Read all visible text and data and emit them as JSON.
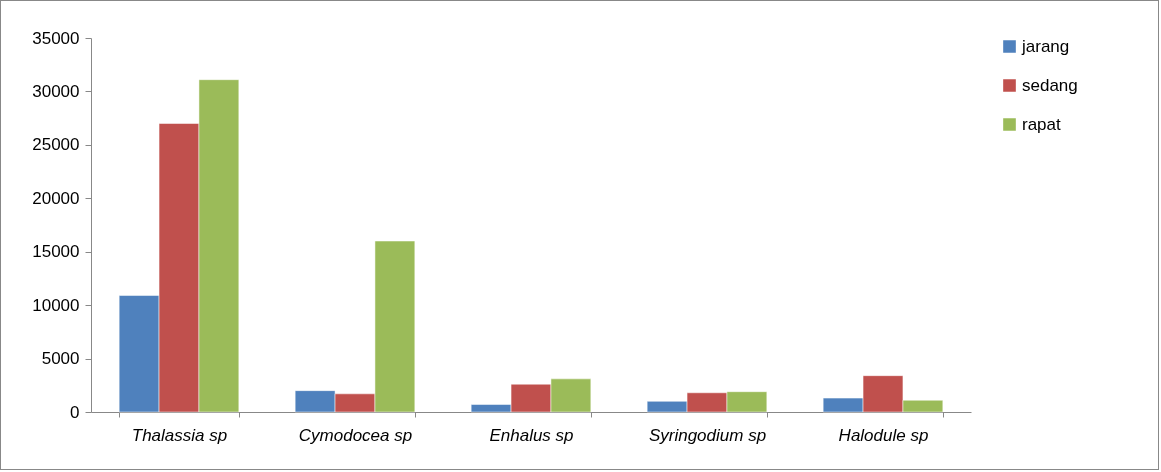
{
  "chart_data": {
    "type": "bar",
    "categories": [
      "Thalassia sp",
      "Cymodocea sp",
      "Enhalus sp",
      "Syringodium sp",
      "Halodule sp"
    ],
    "series": [
      {
        "name": "jarang",
        "color": "#4f81bd",
        "values": [
          10900,
          2000,
          700,
          1000,
          1300
        ]
      },
      {
        "name": "sedang",
        "color": "#c0504d",
        "values": [
          27000,
          1700,
          2600,
          1800,
          3400
        ]
      },
      {
        "name": "rapat",
        "color": "#9bbb59",
        "values": [
          31100,
          16000,
          3100,
          1900,
          1100
        ]
      }
    ],
    "ylim": [
      0,
      35000
    ],
    "yticks": [
      0,
      5000,
      10000,
      15000,
      20000,
      25000,
      30000,
      35000
    ],
    "grid": false,
    "legend": "right"
  }
}
